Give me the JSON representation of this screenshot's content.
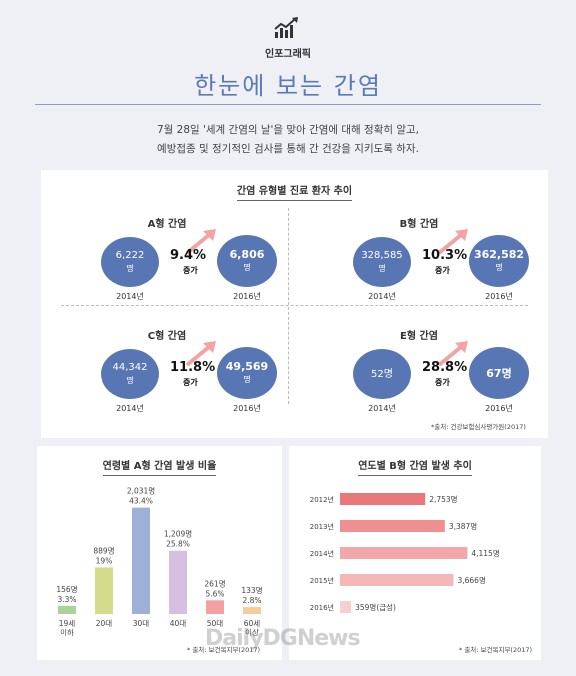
{
  "header": {
    "kicker": "인포그래픽",
    "title": "한눈에 보는 간염",
    "intro_line1": "7월 28일 '세계 간염의 날'을 맞아 간염에 대해 정확히 알고,",
    "intro_line2": "예방접종 및 정기적인 검사를 통해 간 건강을 지키도록 하자."
  },
  "colors": {
    "accent": "#5a7bb5",
    "circle": "#5876b4",
    "arrow": "#f4a3a3",
    "background": "#eef0f6"
  },
  "patients_panel": {
    "title": "간염 유형별 진료 환자 추이",
    "source": "*출처: 건강보험심사평가원(2017)",
    "quads": [
      {
        "title": "A형 간염",
        "left_value": "6,222",
        "left_unit": "명",
        "left_year": "2014년",
        "right_value": "6,806",
        "right_unit": "명",
        "right_year": "2016년",
        "pct": "9.4%",
        "inc": "증가"
      },
      {
        "title": "B형 간염",
        "left_value": "328,585",
        "left_unit": "명",
        "left_year": "2014년",
        "right_value": "362,582",
        "right_unit": "명",
        "right_year": "2016년",
        "pct": "10.3%",
        "inc": "증가"
      },
      {
        "title": "C형 간염",
        "left_value": "44,342",
        "left_unit": "명",
        "left_year": "2014년",
        "right_value": "49,569",
        "right_unit": "명",
        "right_year": "2016년",
        "pct": "11.8%",
        "inc": "증가"
      },
      {
        "title": "E형 간염",
        "left_value": "52명",
        "left_unit": "",
        "left_year": "2014년",
        "right_value": "67명",
        "right_unit": "",
        "right_year": "2016년",
        "pct": "28.8%",
        "inc": "증가"
      }
    ]
  },
  "chart_data": [
    {
      "type": "bar",
      "title": "연령별 A형 간염 발생 비율",
      "categories": [
        "19세\n이하",
        "20대",
        "30대",
        "40대",
        "50대",
        "60세\n이상"
      ],
      "values": [
        156,
        889,
        2031,
        1209,
        261,
        133
      ],
      "value_labels": [
        "156명",
        "889명",
        "2,031명",
        "1,209명",
        "261명",
        "133명"
      ],
      "percent_labels": [
        "3.3%",
        "19%",
        "43.4%",
        "25.8%",
        "5.6%",
        "2.8%"
      ],
      "colors": [
        "#a9d39a",
        "#d4dc8c",
        "#9eb0d8",
        "#d6bfe0",
        "#f2a0a0",
        "#f6cc9c"
      ],
      "source": "* 출처: 보건복지부(2017)"
    },
    {
      "type": "bar",
      "orientation": "horizontal",
      "title": "연도별 B형 간염 발생 추이",
      "categories": [
        "2012년",
        "2013년",
        "2014년",
        "2015년",
        "2016년"
      ],
      "values": [
        2753,
        3387,
        4115,
        3666,
        359
      ],
      "value_labels": [
        "2,753명",
        "3,387명",
        "4,115명",
        "3,666명",
        "359명(급성)"
      ],
      "colors": [
        "#e9787b",
        "#ee8f91",
        "#f2a7a8",
        "#f5b8b8",
        "#f8cfcf"
      ],
      "source": "* 출처: 보건복지부(2017)"
    }
  ],
  "watermark": "DailyDGNews"
}
